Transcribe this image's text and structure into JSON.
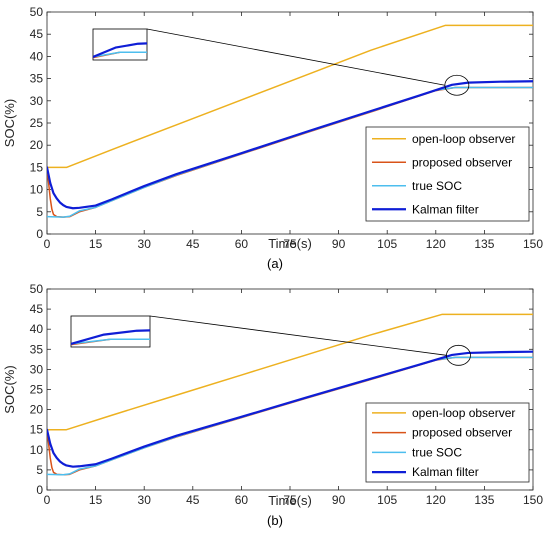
{
  "chart_data": [
    {
      "type": "line",
      "panel_label": "(a)",
      "xlabel": "Time(s)",
      "ylabel": "SOC(%)",
      "xlim": [
        0,
        150
      ],
      "ylim": [
        0,
        50
      ],
      "xticks": [
        0,
        15,
        30,
        45,
        60,
        75,
        90,
        105,
        120,
        135,
        150
      ],
      "yticks": [
        0,
        5,
        10,
        15,
        20,
        25,
        30,
        35,
        40,
        45,
        50
      ],
      "grid": false,
      "legend_position": "lower-right",
      "series": [
        {
          "name": "open-loop observer",
          "color": "#EDB120",
          "width": 1.5,
          "points": [
            [
              0,
              15
            ],
            [
              6,
              15
            ],
            [
              20,
              19
            ],
            [
              40,
              24.6
            ],
            [
              60,
              30.2
            ],
            [
              80,
              35.8
            ],
            [
              100,
              41.4
            ],
            [
              123,
              47
            ],
            [
              150,
              47
            ]
          ]
        },
        {
          "name": "proposed observer",
          "color": "#D95319",
          "width": 1.5,
          "points": [
            [
              0,
              15
            ],
            [
              0.5,
              11.5
            ],
            [
              1,
              8
            ],
            [
              1.5,
              5.6
            ],
            [
              2,
              4.4
            ],
            [
              3,
              3.9
            ],
            [
              5,
              3.8
            ],
            [
              7,
              3.9
            ],
            [
              10,
              5
            ],
            [
              15,
              6
            ],
            [
              20,
              7.5
            ],
            [
              25,
              9
            ],
            [
              30,
              10.5
            ],
            [
              40,
              13.2
            ],
            [
              60,
              18
            ],
            [
              80,
              22.8
            ],
            [
              100,
              27.5
            ],
            [
              120,
              32.3
            ],
            [
              126,
              33
            ],
            [
              150,
              33
            ]
          ]
        },
        {
          "name": "true SOC",
          "color": "#4DBEEE",
          "width": 1.5,
          "points": [
            [
              0,
              3.9
            ],
            [
              5,
              3.8
            ],
            [
              7,
              4
            ],
            [
              10,
              5.2
            ],
            [
              15,
              6
            ],
            [
              20,
              7.5
            ],
            [
              25,
              9
            ],
            [
              30,
              10.5
            ],
            [
              40,
              13.3
            ],
            [
              60,
              18.1
            ],
            [
              80,
              22.9
            ],
            [
              100,
              27.6
            ],
            [
              120,
              32.4
            ],
            [
              126,
              33
            ],
            [
              150,
              33
            ]
          ]
        },
        {
          "name": "Kalman filter",
          "color": "#0F1ED6",
          "width": 2.2,
          "points": [
            [
              0,
              15
            ],
            [
              1,
              11.5
            ],
            [
              2,
              9.2
            ],
            [
              3,
              8
            ],
            [
              4,
              7.1
            ],
            [
              5,
              6.5
            ],
            [
              6,
              6.1
            ],
            [
              8,
              5.8
            ],
            [
              10,
              5.9
            ],
            [
              15,
              6.4
            ],
            [
              20,
              7.8
            ],
            [
              30,
              10.8
            ],
            [
              40,
              13.5
            ],
            [
              60,
              18.2
            ],
            [
              80,
              23
            ],
            [
              100,
              27.7
            ],
            [
              115,
              31.2
            ],
            [
              125,
              33.6
            ],
            [
              130,
              34.1
            ],
            [
              140,
              34.3
            ],
            [
              150,
              34.4
            ]
          ]
        }
      ],
      "inset": {
        "x_range": [
          120,
          132
        ],
        "y_range": [
          32,
          36
        ],
        "ellipse_center": [
          126.5,
          33.5
        ]
      }
    },
    {
      "type": "line",
      "panel_label": "(b)",
      "xlabel": "Time(s)",
      "ylabel": "SOC(%)",
      "xlim": [
        0,
        150
      ],
      "ylim": [
        0,
        50
      ],
      "xticks": [
        0,
        15,
        30,
        45,
        60,
        75,
        90,
        105,
        120,
        135,
        150
      ],
      "yticks": [
        0,
        5,
        10,
        15,
        20,
        25,
        30,
        35,
        40,
        45,
        50
      ],
      "grid": false,
      "legend_position": "lower-right",
      "series": [
        {
          "name": "open-loop observer",
          "color": "#EDB120",
          "width": 1.5,
          "points": [
            [
              0,
              15
            ],
            [
              6,
              15
            ],
            [
              20,
              18.6
            ],
            [
              40,
              23.6
            ],
            [
              60,
              28.6
            ],
            [
              80,
              33.6
            ],
            [
              100,
              38.6
            ],
            [
              122,
              43.7
            ],
            [
              150,
              43.7
            ]
          ]
        },
        {
          "name": "proposed observer",
          "color": "#D95319",
          "width": 1.5,
          "points": [
            [
              0,
              15
            ],
            [
              0.5,
              11.5
            ],
            [
              1,
              8
            ],
            [
              1.5,
              5.6
            ],
            [
              2,
              4.4
            ],
            [
              3,
              3.9
            ],
            [
              5,
              3.8
            ],
            [
              7,
              3.9
            ],
            [
              10,
              5
            ],
            [
              15,
              6
            ],
            [
              20,
              7.5
            ],
            [
              25,
              9
            ],
            [
              30,
              10.5
            ],
            [
              40,
              13.2
            ],
            [
              60,
              18
            ],
            [
              80,
              22.8
            ],
            [
              100,
              27.5
            ],
            [
              120,
              32.3
            ],
            [
              126,
              33
            ],
            [
              150,
              33
            ]
          ]
        },
        {
          "name": "true SOC",
          "color": "#4DBEEE",
          "width": 1.5,
          "points": [
            [
              0,
              3.9
            ],
            [
              5,
              3.8
            ],
            [
              7,
              4
            ],
            [
              10,
              5.2
            ],
            [
              15,
              6
            ],
            [
              20,
              7.5
            ],
            [
              25,
              9
            ],
            [
              30,
              10.5
            ],
            [
              40,
              13.3
            ],
            [
              60,
              18.1
            ],
            [
              80,
              22.9
            ],
            [
              100,
              27.6
            ],
            [
              120,
              32.4
            ],
            [
              126,
              33
            ],
            [
              150,
              33
            ]
          ]
        },
        {
          "name": "Kalman filter",
          "color": "#0F1ED6",
          "width": 2.2,
          "points": [
            [
              0,
              15
            ],
            [
              1,
              11.5
            ],
            [
              2,
              9.2
            ],
            [
              3,
              8
            ],
            [
              4,
              7.1
            ],
            [
              5,
              6.5
            ],
            [
              6,
              6.1
            ],
            [
              8,
              5.8
            ],
            [
              10,
              5.9
            ],
            [
              15,
              6.4
            ],
            [
              20,
              7.8
            ],
            [
              30,
              10.8
            ],
            [
              40,
              13.5
            ],
            [
              60,
              18.2
            ],
            [
              80,
              23
            ],
            [
              100,
              27.7
            ],
            [
              115,
              31.2
            ],
            [
              125,
              33.6
            ],
            [
              130,
              34.1
            ],
            [
              140,
              34.3
            ],
            [
              150,
              34.4
            ]
          ]
        }
      ],
      "inset": {
        "x_range": [
          120,
          132
        ],
        "y_range": [
          32,
          36
        ],
        "ellipse_center": [
          127,
          33.5
        ]
      }
    }
  ]
}
